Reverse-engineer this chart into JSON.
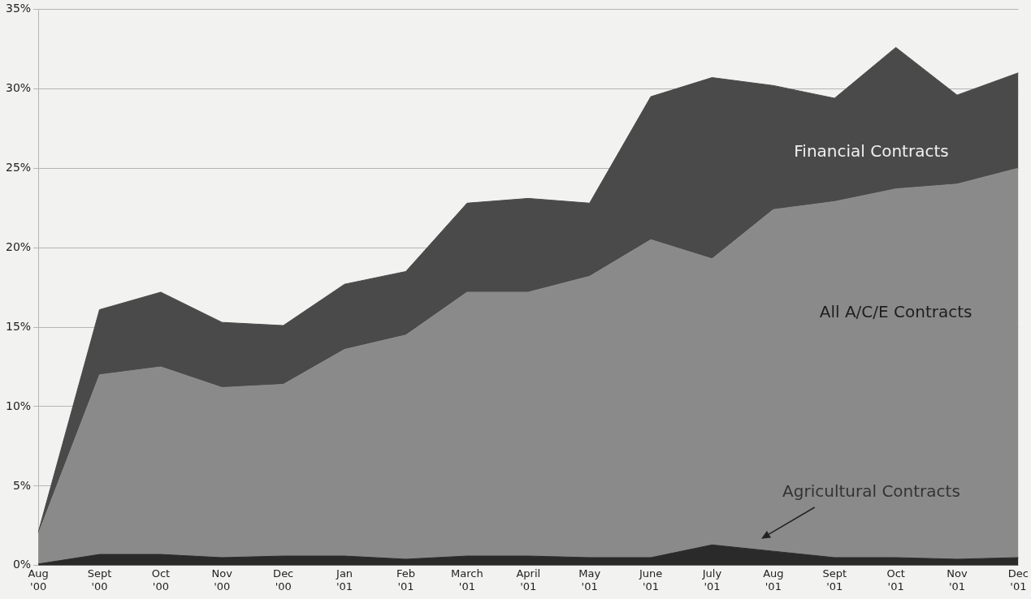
{
  "chart_data": {
    "type": "area",
    "stacked": true,
    "grid": "y",
    "legend": false,
    "marker": "none",
    "categories": [
      "Aug '00",
      "Sept '00",
      "Oct '00",
      "Nov '00",
      "Dec '00",
      "Jan '01",
      "Feb '01",
      "March '01",
      "April '01",
      "May '01",
      "June '01",
      "July '01",
      "Aug '01",
      "Sept '01",
      "Oct '01",
      "Nov '01",
      "Dec '01"
    ],
    "series": [
      {
        "name": "Agricultural Contracts",
        "color": "#2a2a2a",
        "values": [
          0.1,
          0.7,
          0.7,
          0.5,
          0.6,
          0.6,
          0.4,
          0.6,
          0.6,
          0.5,
          0.5,
          1.3,
          0.9,
          0.5,
          0.5,
          0.4,
          0.5
        ]
      },
      {
        "name": "All A/C/E Contracts",
        "color": "#8a8a8a",
        "values": [
          1.9,
          11.3,
          11.8,
          10.7,
          10.8,
          13.0,
          14.1,
          16.6,
          16.6,
          17.7,
          20.0,
          18.0,
          21.5,
          22.4,
          23.2,
          23.6,
          24.5
        ]
      },
      {
        "name": "Financial Contracts",
        "color": "#4a4a4a",
        "values": [
          0.1,
          4.1,
          4.7,
          4.1,
          3.7,
          4.1,
          4.0,
          5.6,
          5.9,
          4.6,
          9.0,
          11.4,
          7.8,
          6.5,
          8.9,
          5.6,
          6.0
        ]
      }
    ],
    "ylim": [
      0,
      35
    ],
    "yticks": [
      {
        "value": 0,
        "label": "0%"
      },
      {
        "value": 5,
        "label": "5%"
      },
      {
        "value": 10,
        "label": "10%"
      },
      {
        "value": 15,
        "label": "15%"
      },
      {
        "value": 20,
        "label": "20%"
      },
      {
        "value": 25,
        "label": "25%"
      },
      {
        "value": 30,
        "label": "30%"
      },
      {
        "value": 35,
        "label": "35%"
      }
    ]
  }
}
